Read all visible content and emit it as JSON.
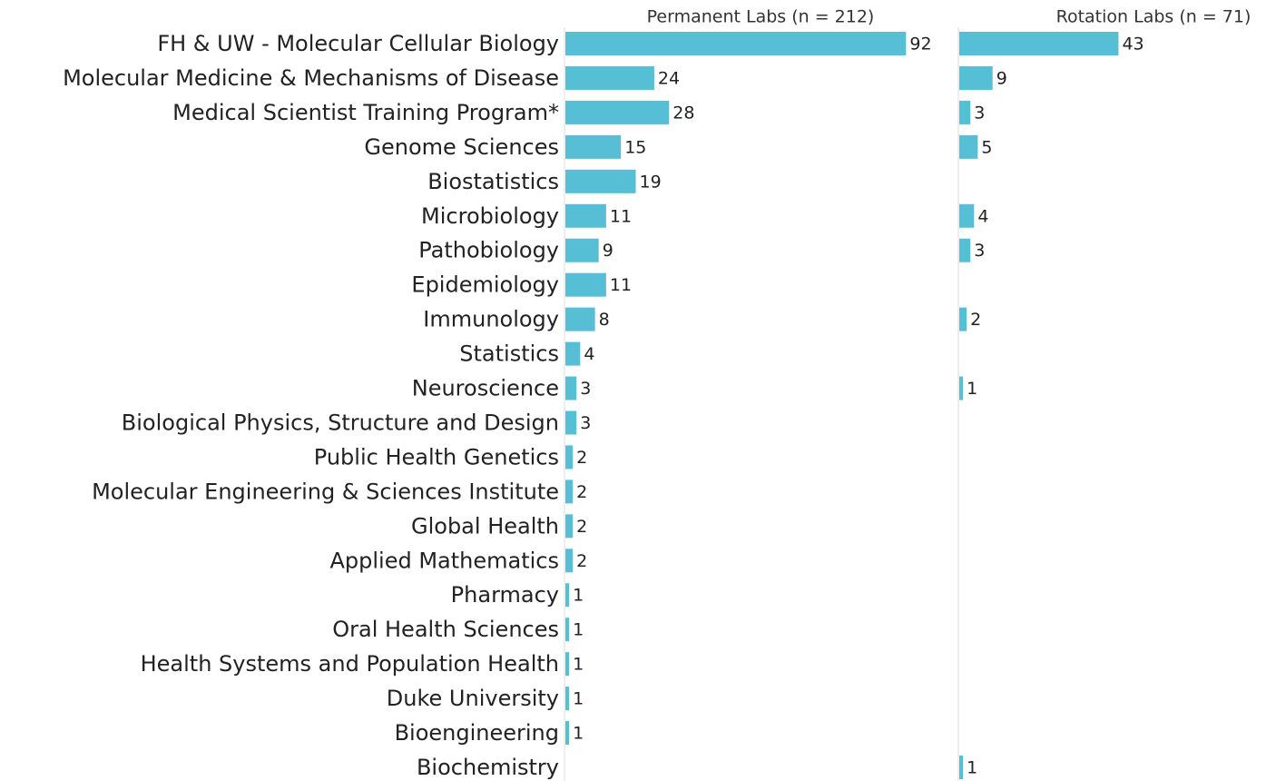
{
  "chart_data": {
    "type": "bar",
    "orientation": "horizontal",
    "categories": [
      "FH & UW - Molecular Cellular Biology",
      "Molecular Medicine & Mechanisms of Disease",
      "Medical Scientist Training Program*",
      "Genome Sciences",
      "Biostatistics",
      "Microbiology",
      "Pathobiology",
      "Epidemiology",
      "Immunology",
      "Statistics",
      "Neuroscience",
      "Biological Physics, Structure and Design",
      "Public Health Genetics",
      "Molecular Engineering & Sciences Institute",
      "Global Health",
      "Applied Mathematics",
      "Pharmacy",
      "Oral Health Sciences",
      "Health Systems and Population Health",
      "Duke University",
      "Bioengineering",
      "Biochemistry"
    ],
    "series": [
      {
        "name": "Permanent Labs (n = 212)",
        "color": "#56bfd5",
        "values": [
          92,
          24,
          28,
          15,
          19,
          11,
          9,
          11,
          8,
          4,
          3,
          3,
          2,
          2,
          2,
          2,
          1,
          1,
          1,
          1,
          1,
          null
        ]
      },
      {
        "name": "Rotation Labs (n = 71)",
        "color": "#56bfd5",
        "values": [
          43,
          9,
          3,
          5,
          null,
          4,
          3,
          null,
          2,
          null,
          1,
          null,
          null,
          null,
          null,
          null,
          null,
          null,
          null,
          null,
          null,
          1
        ]
      }
    ]
  }
}
